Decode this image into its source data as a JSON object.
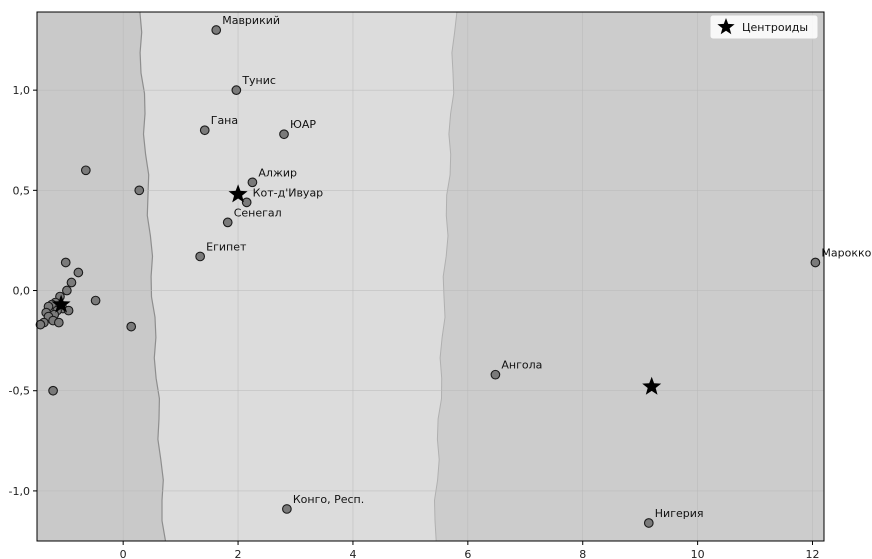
{
  "chart_data": {
    "type": "scatter",
    "xlim": [
      -1.5,
      12.2
    ],
    "ylim": [
      -1.25,
      1.39
    ],
    "xticks": [
      0,
      2,
      4,
      6,
      8,
      10,
      12
    ],
    "yticks": [
      1.0,
      0.5,
      0.0,
      -0.5,
      -1.0
    ],
    "xtick_labels": [
      "0",
      "2",
      "4",
      "6",
      "8",
      "10",
      "12"
    ],
    "ytick_labels": [
      "1,0",
      "0,5",
      "0,0",
      "-0,5",
      "-1,0"
    ],
    "grid": true,
    "legend": {
      "position": "top-right",
      "entries": [
        "Центроиды"
      ]
    },
    "regions": [
      {
        "x_min": -1.5,
        "x_max_top": 0.28,
        "x_max_bottom": 0.72,
        "color": "#c9c9c9"
      },
      {
        "x_min_top": 0.28,
        "x_min_bottom": 0.72,
        "x_max_top": 5.78,
        "x_max_bottom": 5.42,
        "color": "#dcdcdc"
      },
      {
        "x_min_top": 5.78,
        "x_min_bottom": 5.42,
        "x_max": 12.2,
        "color": "#cccccc"
      }
    ],
    "points": [
      {
        "x": 1.62,
        "y": 1.3,
        "label": "Маврикий"
      },
      {
        "x": 1.97,
        "y": 1.0,
        "label": "Тунис"
      },
      {
        "x": 1.42,
        "y": 0.8,
        "label": "Гана"
      },
      {
        "x": 2.8,
        "y": 0.78,
        "label": "ЮАР"
      },
      {
        "x": 2.25,
        "y": 0.54,
        "label": "Алжир"
      },
      {
        "x": 2.15,
        "y": 0.44,
        "label": "Кот-д'Ивуар"
      },
      {
        "x": 1.82,
        "y": 0.34,
        "label": "Сенегал"
      },
      {
        "x": 1.34,
        "y": 0.17,
        "label": "Египет"
      },
      {
        "x": 12.05,
        "y": 0.14,
        "label": "Марокко"
      },
      {
        "x": 6.48,
        "y": -0.42,
        "label": "Ангола"
      },
      {
        "x": 2.85,
        "y": -1.09,
        "label": "Конго, Респ."
      },
      {
        "x": 9.15,
        "y": -1.16,
        "label": "Нигерия"
      },
      {
        "x": -0.65,
        "y": 0.6,
        "label": ""
      },
      {
        "x": 0.28,
        "y": 0.5,
        "label": ""
      },
      {
        "x": -1.0,
        "y": 0.14,
        "label": ""
      },
      {
        "x": -0.78,
        "y": 0.09,
        "label": ""
      },
      {
        "x": -0.9,
        "y": 0.04,
        "label": ""
      },
      {
        "x": -0.98,
        "y": 0.0,
        "label": ""
      },
      {
        "x": -1.1,
        "y": -0.03,
        "label": ""
      },
      {
        "x": -0.48,
        "y": -0.05,
        "label": ""
      },
      {
        "x": -1.18,
        "y": -0.06,
        "label": ""
      },
      {
        "x": -1.24,
        "y": -0.07,
        "label": ""
      },
      {
        "x": -1.3,
        "y": -0.08,
        "label": ""
      },
      {
        "x": -1.05,
        "y": -0.09,
        "label": ""
      },
      {
        "x": -1.15,
        "y": -0.1,
        "label": ""
      },
      {
        "x": -0.95,
        "y": -0.1,
        "label": ""
      },
      {
        "x": -1.34,
        "y": -0.11,
        "label": ""
      },
      {
        "x": -1.2,
        "y": -0.12,
        "label": ""
      },
      {
        "x": -1.3,
        "y": -0.13,
        "label": ""
      },
      {
        "x": -1.22,
        "y": -0.15,
        "label": ""
      },
      {
        "x": -1.38,
        "y": -0.16,
        "label": ""
      },
      {
        "x": -1.12,
        "y": -0.16,
        "label": ""
      },
      {
        "x": -1.44,
        "y": -0.17,
        "label": ""
      },
      {
        "x": 0.14,
        "y": -0.18,
        "label": ""
      },
      {
        "x": -1.22,
        "y": -0.5,
        "label": ""
      }
    ],
    "centroids": [
      {
        "x": -1.08,
        "y": -0.07
      },
      {
        "x": 2.0,
        "y": 0.48
      },
      {
        "x": 9.2,
        "y": -0.48
      }
    ],
    "colors": {
      "point_fill": "#7a7a7a",
      "point_stroke": "#1a1a1a",
      "centroid": "#000000",
      "grid": "#b8b8b8",
      "axis": "#000000"
    }
  }
}
